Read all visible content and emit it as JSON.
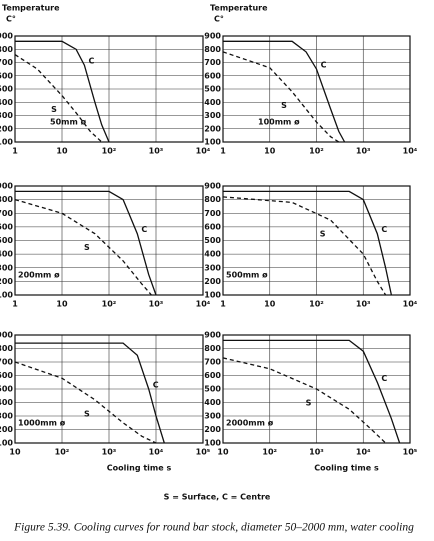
{
  "chart_data": [
    {
      "type": "line",
      "y_label": "Temperature",
      "y_unit": "C°",
      "annotation": "50mm ø",
      "xscale": "log",
      "xlim": [
        1,
        10000
      ],
      "ylim": [
        100,
        900
      ],
      "xticks": [
        1,
        10,
        {
          "value": 100,
          "label": "10²"
        },
        {
          "value": 1000,
          "label": "10³"
        },
        {
          "value": 10000,
          "label": "10⁴"
        }
      ],
      "yticks": [
        100,
        200,
        300,
        400,
        500,
        600,
        700,
        800,
        900
      ],
      "grid": true,
      "series": [
        {
          "name": "S",
          "color": "#111111",
          "style": "dashed",
          "x": [
            1,
            3,
            10,
            20,
            40,
            70
          ],
          "values": [
            760,
            650,
            450,
            320,
            180,
            100
          ]
        },
        {
          "name": "C",
          "color": "#111111",
          "style": "solid",
          "x": [
            1,
            10,
            20,
            30,
            50,
            70,
            100
          ],
          "values": [
            860,
            860,
            800,
            680,
            400,
            230,
            100
          ]
        }
      ]
    },
    {
      "type": "line",
      "y_label": "Temperature",
      "y_unit": "C°",
      "annotation": "100mm ø",
      "xscale": "log",
      "xlim": [
        1,
        10000
      ],
      "ylim": [
        100,
        900
      ],
      "xticks": [
        1,
        10,
        {
          "value": 100,
          "label": "10²"
        },
        {
          "value": 1000,
          "label": "10³"
        },
        {
          "value": 10000,
          "label": "10⁴"
        }
      ],
      "yticks": [
        100,
        200,
        300,
        400,
        500,
        600,
        700,
        800,
        900
      ],
      "grid": true,
      "series": [
        {
          "name": "S",
          "color": "#111111",
          "style": "dashed",
          "x": [
            1,
            10,
            30,
            100,
            200,
            300
          ],
          "values": [
            780,
            660,
            480,
            250,
            140,
            100
          ]
        },
        {
          "name": "C",
          "color": "#111111",
          "style": "solid",
          "x": [
            1,
            30,
            60,
            100,
            200,
            300,
            400
          ],
          "values": [
            860,
            860,
            780,
            650,
            350,
            180,
            100
          ]
        }
      ]
    },
    {
      "type": "line",
      "annotation": "200mm ø",
      "xscale": "log",
      "xlim": [
        1,
        10000
      ],
      "ylim": [
        100,
        900
      ],
      "xticks": [
        1,
        10,
        {
          "value": 100,
          "label": "10²"
        },
        {
          "value": 1000,
          "label": "10³"
        },
        {
          "value": 10000,
          "label": "10⁴"
        }
      ],
      "yticks": [
        100,
        200,
        300,
        400,
        500,
        600,
        700,
        800,
        900
      ],
      "grid": true,
      "series": [
        {
          "name": "S",
          "color": "#111111",
          "style": "dashed",
          "x": [
            1,
            10,
            50,
            200,
            500,
            800
          ],
          "values": [
            800,
            700,
            550,
            350,
            180,
            100
          ]
        },
        {
          "name": "C",
          "color": "#111111",
          "style": "solid",
          "x": [
            1,
            100,
            200,
            400,
            700,
            1000
          ],
          "values": [
            860,
            860,
            800,
            550,
            250,
            100
          ]
        }
      ]
    },
    {
      "type": "line",
      "annotation": "500mm ø",
      "xscale": "log",
      "xlim": [
        1,
        10000
      ],
      "ylim": [
        100,
        900
      ],
      "xticks": [
        1,
        10,
        {
          "value": 100,
          "label": "10²"
        },
        {
          "value": 1000,
          "label": "10³"
        },
        {
          "value": 10000,
          "label": "10⁴"
        }
      ],
      "yticks": [
        100,
        200,
        300,
        400,
        500,
        600,
        700,
        800,
        900
      ],
      "grid": true,
      "series": [
        {
          "name": "S",
          "color": "#111111",
          "style": "dashed",
          "x": [
            1,
            30,
            200,
            1000,
            2000,
            3000
          ],
          "values": [
            820,
            780,
            650,
            400,
            200,
            100
          ]
        },
        {
          "name": "C",
          "color": "#111111",
          "style": "solid",
          "x": [
            1,
            500,
            1000,
            2000,
            3000,
            4000
          ],
          "values": [
            860,
            860,
            800,
            550,
            300,
            100
          ]
        }
      ]
    },
    {
      "type": "line",
      "x_label": "Cooling time s",
      "annotation": "1000mm ø",
      "xscale": "log",
      "xlim": [
        10,
        100000
      ],
      "ylim": [
        100,
        900
      ],
      "xticks": [
        10,
        {
          "value": 100,
          "label": "10²"
        },
        {
          "value": 1000,
          "label": "10³"
        },
        {
          "value": 10000,
          "label": "10⁴"
        },
        {
          "value": 100000,
          "label": "10⁵"
        }
      ],
      "yticks": [
        100,
        200,
        300,
        400,
        500,
        600,
        700,
        800,
        900
      ],
      "grid": true,
      "series": [
        {
          "name": "S",
          "color": "#111111",
          "style": "dashed",
          "x": [
            10,
            100,
            500,
            2000,
            5000,
            10000
          ],
          "values": [
            700,
            580,
            420,
            250,
            150,
            100
          ]
        },
        {
          "name": "C",
          "color": "#111111",
          "style": "solid",
          "x": [
            10,
            2000,
            4000,
            7000,
            10000,
            15000
          ],
          "values": [
            840,
            840,
            750,
            500,
            300,
            100
          ]
        }
      ]
    },
    {
      "type": "line",
      "x_label": "Cooling time s",
      "annotation": "2000mm ø",
      "xscale": "log",
      "xlim": [
        10,
        100000
      ],
      "ylim": [
        100,
        900
      ],
      "xticks": [
        10,
        {
          "value": 100,
          "label": "10²"
        },
        {
          "value": 1000,
          "label": "10³"
        },
        {
          "value": 10000,
          "label": "10⁴"
        },
        {
          "value": 100000,
          "label": "10⁵"
        }
      ],
      "yticks": [
        100,
        200,
        300,
        400,
        500,
        600,
        700,
        800,
        900
      ],
      "grid": true,
      "series": [
        {
          "name": "S",
          "color": "#111111",
          "style": "dashed",
          "x": [
            10,
            100,
            1000,
            5000,
            15000,
            30000
          ],
          "values": [
            730,
            650,
            500,
            350,
            200,
            100
          ]
        },
        {
          "name": "C",
          "color": "#111111",
          "style": "solid",
          "x": [
            10,
            5000,
            10000,
            20000,
            40000,
            60000
          ],
          "values": [
            860,
            860,
            780,
            550,
            280,
            100
          ]
        }
      ]
    }
  ],
  "note": "S = Surface, C = Centre",
  "caption": "Figure 5.39. Cooling curves for round bar stock, diameter 50–2000 mm, water cooling"
}
